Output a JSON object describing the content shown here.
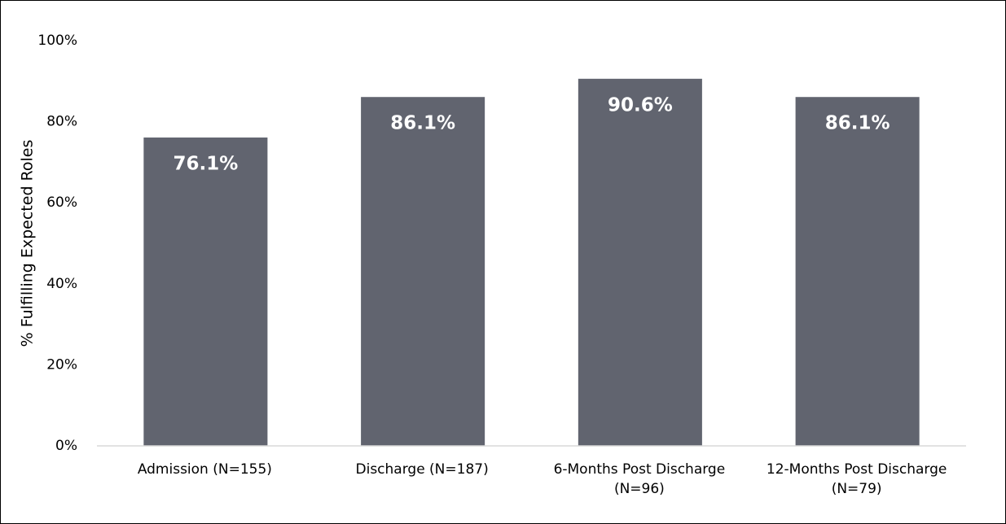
{
  "chart_data": {
    "type": "bar",
    "y_label": "% Fulfilling Expected Roles",
    "categories": [
      "Admission (N=155)",
      "Discharge (N=187)",
      "6-Months Post Discharge (N=96)",
      "12-Months Post Discharge (N=79)"
    ],
    "values": [
      76.1,
      86.1,
      90.6,
      86.1
    ],
    "value_labels": [
      "76.1%",
      "86.1%",
      "90.6%",
      "86.1%"
    ],
    "color": "#61646f",
    "ylim": [
      0,
      100
    ],
    "yticks": [
      {
        "value": 0,
        "label": "0%"
      },
      {
        "value": 20,
        "label": "20%"
      },
      {
        "value": 40,
        "label": "40%"
      },
      {
        "value": 60,
        "label": "60%"
      },
      {
        "value": 80,
        "label": "80%"
      },
      {
        "value": 100,
        "label": "100%"
      }
    ],
    "grid": false
  }
}
